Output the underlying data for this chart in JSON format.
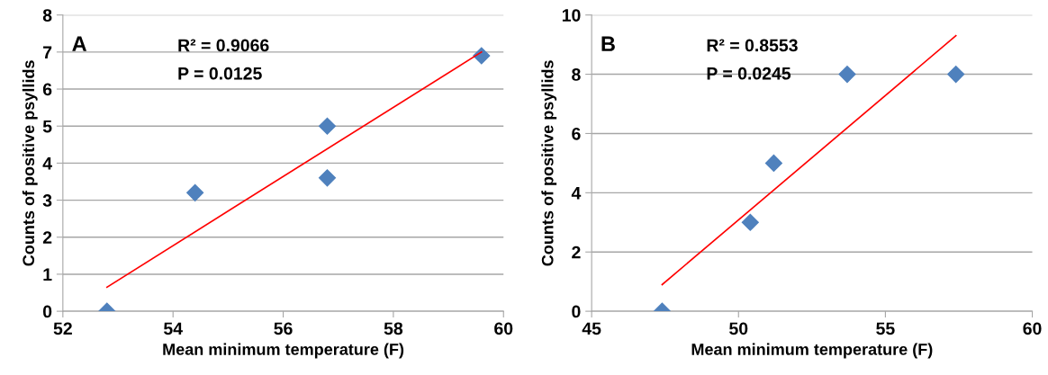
{
  "chart_data": [
    {
      "type": "scatter",
      "xlabel": "Mean minimum temperature (F)",
      "ylabel": "Counts of positive psyllids",
      "annotations": [
        "A",
        "R² = 0.9066",
        "P = 0.0125"
      ],
      "xlim": [
        52,
        60
      ],
      "xticks": [
        52,
        54,
        56,
        58,
        60
      ],
      "ylim": [
        0,
        8
      ],
      "yticks": [
        0,
        1,
        2,
        3,
        4,
        5,
        6,
        7,
        8
      ],
      "grid": "y",
      "marker": "diamond",
      "series": [
        {
          "color": "#4f81bd",
          "x": [
            52.8,
            54.4,
            56.8,
            56.8,
            59.6
          ],
          "values": [
            0,
            3.2,
            3.6,
            5,
            6.9
          ]
        },
        {
          "type": "line",
          "color": "#ff0000",
          "marker": "none",
          "line_style": "solid",
          "x": [
            52.8,
            59.6
          ],
          "values": [
            0.65,
            7.0
          ]
        }
      ]
    },
    {
      "type": "scatter",
      "xlabel": "Mean minimum temperature (F)",
      "ylabel": "Counts of positive psyllids",
      "annotations": [
        "B",
        "R² = 0.8553",
        "P = 0.0245"
      ],
      "xlim": [
        45,
        60
      ],
      "xticks": [
        45,
        50,
        55,
        60
      ],
      "ylim": [
        0,
        10
      ],
      "yticks": [
        0,
        2,
        4,
        6,
        8,
        10
      ],
      "grid": "y",
      "marker": "diamond",
      "series": [
        {
          "color": "#4f81bd",
          "x": [
            47.4,
            50.4,
            51.2,
            53.7,
            57.4
          ],
          "values": [
            0,
            3,
            5,
            8,
            8
          ]
        },
        {
          "type": "line",
          "color": "#ff0000",
          "marker": "none",
          "line_style": "solid",
          "x": [
            47.4,
            57.4
          ],
          "values": [
            0.9,
            9.3
          ]
        }
      ]
    }
  ]
}
